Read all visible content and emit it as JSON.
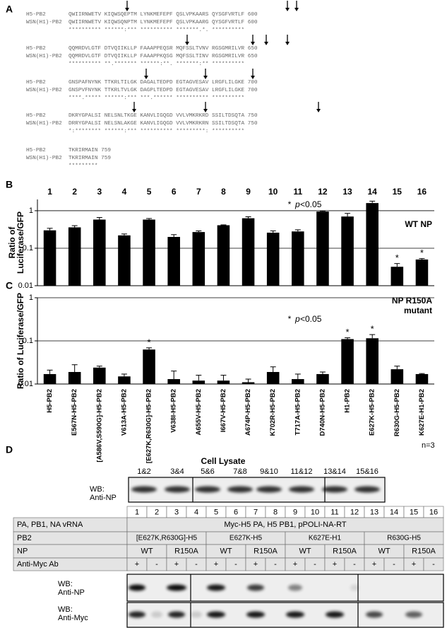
{
  "panel_labels": [
    "A",
    "B",
    "C",
    "D"
  ],
  "alignment": {
    "blocks": [
      {
        "rows": [
          {
            "name": "H5-PB2",
            "sequence": "QWIIRNWETV KIQWSQEPTM LYNKMEFEPF QSLVPKAARS QYSGFVRTLF 600"
          },
          {
            "name": "WSN(H1)-PB2",
            "sequence": "QWIIRNWETV KIQWSQNPTM LYNKMEFEPF QSLVPKAARG QYSGFVRTLF 600"
          }
        ],
        "consensus": "********** ******:*** ********** *******.*. **********"
      },
      {
        "rows": [
          {
            "name": "H5-PB2",
            "sequence": "QQMRDVLGTF DTVQIIKLLP FAAAPPEQSR MQFSSLTVNV RGSGMRILVR 650"
          },
          {
            "name": "WSN(H1)-PB2",
            "sequence": "QQMRDVLGTF DTVQIIKLLP FAAAPPKQSG MQFSSLTINV RGSGMRILVR 650"
          }
        ],
        "consensus": "********** **.******* ******:**. *******:** **********"
      },
      {
        "rows": [
          {
            "name": "H5-PB2",
            "sequence": "GNSPAFNYNK TTKRLTILGK DAGALTEDPD EGTAGVESAV LRGFLILGKE 700"
          },
          {
            "name": "WSN(H1)-PB2",
            "sequence": "GNSPVFNYNK TTKRLTVLGK DAGPLTEDPD EGTAGVESAV LRGFLILGKE 700"
          }
        ],
        "consensus": "****.***** ******:*** ***.****** ********** **********"
      },
      {
        "rows": [
          {
            "name": "H5-PB2",
            "sequence": "DKRYGPALSI NELSNLTKGE KANVLIGQGD VVLVMKRKRD SSILTDSQTA 750"
          },
          {
            "name": "WSN(H1)-PB2",
            "sequence": "DRRYGPALSI NELSNLAKGE KANVLIGQGD VVLVMKRKRN SSILTDSQTA 750"
          }
        ],
        "consensus": "*:******** ******:*** ********** *********: **********"
      },
      {
        "rows": [
          {
            "name": "H5-PB2",
            "sequence": "TKRIRMAIN 759"
          },
          {
            "name": "WSN(H1)-PB2",
            "sequence": "TKRIRMAIN 759"
          }
        ],
        "consensus": "*********"
      }
    ]
  },
  "chart_data": [
    {
      "type": "bar",
      "title_lines": [
        "WT NP"
      ],
      "ylabel_lines": [
        "Ratio of",
        "Luciferase/GFP"
      ],
      "categories": [
        "1",
        "2",
        "3",
        "4",
        "5",
        "6",
        "7",
        "8",
        "9",
        "10",
        "11",
        "12",
        "13",
        "14",
        "15",
        "16"
      ],
      "values": [
        0.3,
        0.36,
        0.58,
        0.22,
        0.58,
        0.2,
        0.27,
        0.41,
        0.63,
        0.26,
        0.28,
        0.95,
        0.7,
        1.6,
        0.032,
        0.05
      ],
      "errors": [
        0.04,
        0.04,
        0.08,
        0.02,
        0.04,
        0.03,
        0.02,
        0.01,
        0.06,
        0.03,
        0.03,
        0.03,
        0.15,
        0.2,
        0.007,
        0.003
      ],
      "markers": [
        null,
        null,
        null,
        null,
        null,
        null,
        null,
        null,
        null,
        null,
        null,
        null,
        null,
        null,
        "*",
        "*"
      ],
      "significance": {
        "symbol": "*",
        "variable": "p",
        "threshold": "<0.05"
      },
      "color": "#000000",
      "log_scale": true,
      "grid": true,
      "ylim": [
        0.01,
        2
      ],
      "yticks": [
        0.01,
        0.1,
        1
      ]
    },
    {
      "type": "bar",
      "title_lines": [
        "NP R150A",
        "mutant"
      ],
      "ylabel_lines": [
        "Ratio of Luciferase/GFP"
      ],
      "categories": [
        "H5-PB2",
        "E567N-H5-PB2",
        "[A586V,S590G]-H5-PB2",
        "V613A-H5-PB2",
        "[E627K,R630G]-H5-PB2",
        "V638I-H5-PB2",
        "A655V-H5-PB2",
        "I667V-H5-PB2",
        "A674P-H5-PB2",
        "K702R-H5-PB2",
        "T717A-H5-PB2",
        "D740N-H5-PB2",
        "H1-PB2",
        "E627K-H5-PB2",
        "R630G-H5-PB2",
        "K627E-H1-PB2"
      ],
      "values": [
        0.017,
        0.019,
        0.024,
        0.015,
        0.063,
        0.013,
        0.012,
        0.012,
        0.011,
        0.019,
        0.013,
        0.017,
        0.11,
        0.115,
        0.022,
        0.017
      ],
      "errors": [
        0.004,
        0.009,
        0.002,
        0.002,
        0.006,
        0.007,
        0.004,
        0.004,
        0.002,
        0.006,
        0.004,
        0.002,
        0.008,
        0.025,
        0.004,
        0.0005
      ],
      "markers": [
        null,
        null,
        null,
        null,
        "*",
        null,
        null,
        null,
        null,
        null,
        null,
        null,
        "*",
        "*",
        null,
        null
      ],
      "significance": {
        "symbol": "*",
        "variable": "p",
        "threshold": "<0.05"
      },
      "color": "#000000",
      "log_scale": true,
      "grid": true,
      "ylim": [
        0.01,
        1
      ],
      "yticks": [
        0.01,
        0.1,
        1
      ]
    }
  ],
  "footnote": "n=3",
  "western": {
    "cell_lysate_title": "Cell Lysate",
    "lysate_lanes": [
      "1&2",
      "3&4",
      "5&6",
      "7&8",
      "9&10",
      "11&12",
      "13&14",
      "15&16"
    ],
    "lysate_blot_label": [
      "WB:",
      "Anti-NP"
    ],
    "lane_numbers": [
      1,
      2,
      3,
      4,
      5,
      6,
      7,
      8,
      9,
      10,
      11,
      12,
      13,
      14,
      15,
      16
    ],
    "rows": [
      {
        "label": "PA, PB1, NA vRNA",
        "cells": [
          "Myc-H5 PA, H5 PB1, pPOLI-NA-RT"
        ]
      },
      {
        "label": "PB2",
        "cells": [
          "[E627K,R630G]-H5",
          "E627K-H5",
          "K627E-H1",
          "R630G-H5"
        ]
      },
      {
        "label": "NP",
        "cells": [
          "WT",
          "R150A",
          "WT",
          "R150A",
          "WT",
          "R150A",
          "WT",
          "R150A"
        ]
      },
      {
        "label": "Anti-Myc Ab",
        "cells": [
          "+",
          "-",
          "+",
          "-",
          "+",
          "-",
          "+",
          "-",
          "+",
          "-",
          "+",
          "-",
          "+",
          "-",
          "+",
          "-"
        ]
      }
    ],
    "blots": [
      [
        "WB:",
        "Anti-NP"
      ],
      [
        "WB:",
        "Anti-Myc"
      ]
    ]
  }
}
